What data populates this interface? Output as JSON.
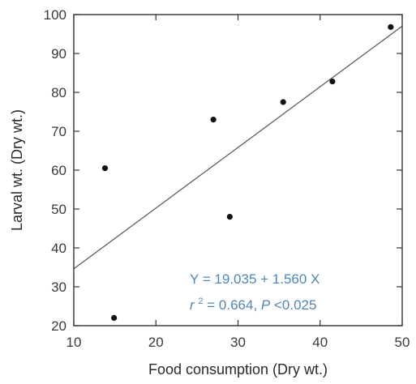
{
  "chart_data": {
    "type": "scatter",
    "title": "",
    "xlabel": "Food consumption (Dry wt.)",
    "ylabel": "Larval wt. (Dry wt.)",
    "xlim": [
      10,
      50
    ],
    "ylim": [
      20,
      100
    ],
    "xticks": [
      10,
      20,
      30,
      40,
      50
    ],
    "yticks": [
      20,
      30,
      40,
      50,
      60,
      70,
      80,
      90,
      100
    ],
    "grid": false,
    "points": [
      {
        "x": 13.8,
        "y": 60.5
      },
      {
        "x": 14.9,
        "y": 22.0
      },
      {
        "x": 27.0,
        "y": 73.0
      },
      {
        "x": 29.0,
        "y": 48.0
      },
      {
        "x": 35.5,
        "y": 77.5
      },
      {
        "x": 41.5,
        "y": 82.8
      },
      {
        "x": 48.6,
        "y": 96.8
      }
    ],
    "regression": {
      "intercept": 19.035,
      "slope": 1.56
    },
    "annotations": {
      "equation": "Y = 19.035 + 1.560 X",
      "r_symbol": "r",
      "r_exponent": "2",
      "r_rest": " = 0.664, ",
      "p_symbol": "P",
      "p_rest": " <0.025"
    },
    "colors": {
      "annotation": "#4f86b8",
      "points": "#111111",
      "line": "#555555"
    }
  }
}
